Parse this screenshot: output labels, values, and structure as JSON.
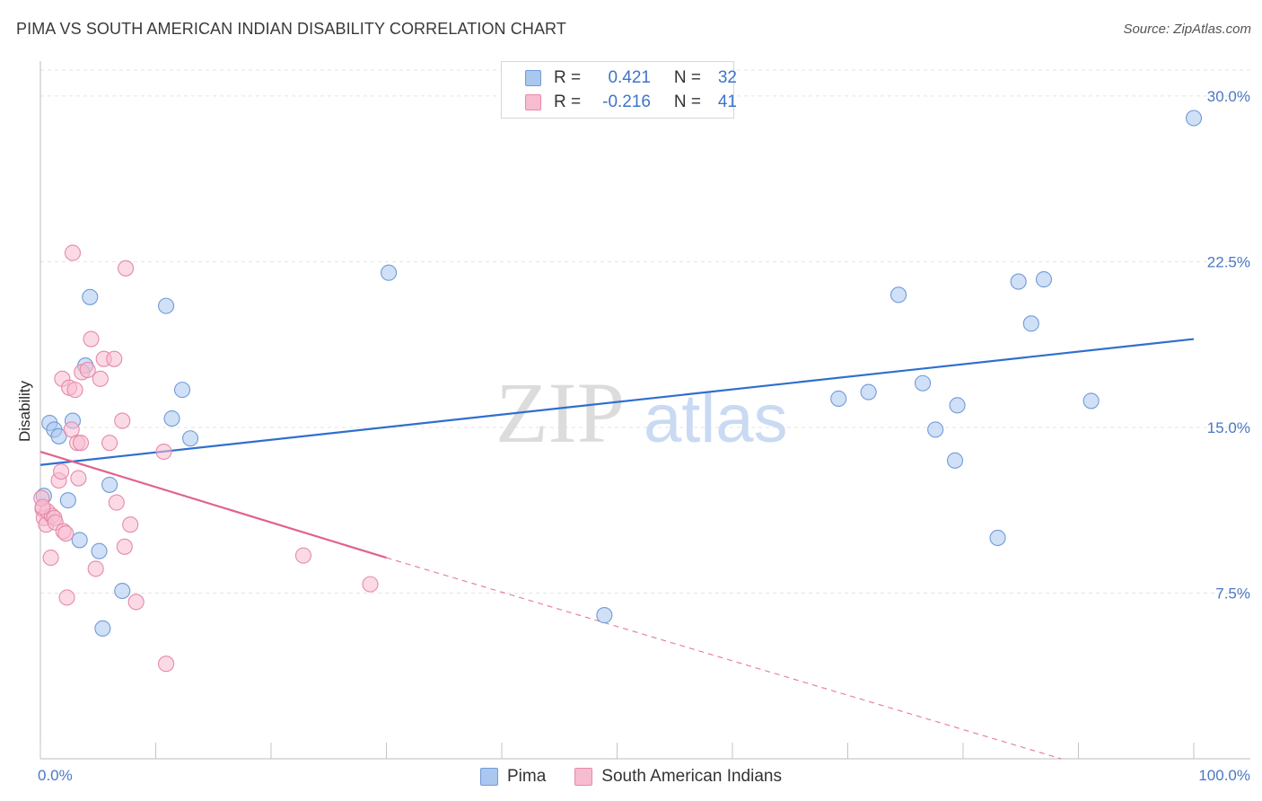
{
  "title": "PIMA VS SOUTH AMERICAN INDIAN DISABILITY CORRELATION CHART",
  "source": "Source: ZipAtlas.com",
  "watermark": {
    "zip": "ZIP",
    "atlas": "atlas"
  },
  "legend": {
    "rows": [
      {
        "r_label": "R =",
        "r_value": "0.421",
        "n_label": "N =",
        "n_value": "32",
        "color": "#a9c7ef",
        "stroke": "#6f9bd8"
      },
      {
        "r_label": "R =",
        "r_value": "-0.216",
        "n_label": "N =",
        "n_value": "41",
        "color": "#f7bcd0",
        "stroke": "#e58aa8"
      }
    ]
  },
  "bottom_legend": [
    {
      "label": "Pima",
      "color": "#a9c7ef",
      "stroke": "#6f9bd8"
    },
    {
      "label": "South American Indians",
      "color": "#f7bcd0",
      "stroke": "#e58aa8"
    }
  ],
  "chart_data": {
    "type": "scatter",
    "title": "PIMA VS SOUTH AMERICAN INDIAN DISABILITY CORRELATION CHART",
    "xlabel": "",
    "ylabel": "Disability",
    "xlim": [
      0,
      100
    ],
    "ylim": [
      0,
      31.5
    ],
    "x_tick_labels": [
      "0.0%",
      "100.0%"
    ],
    "y_ticks": [
      7.5,
      15.0,
      22.5,
      30.0
    ],
    "y_tick_labels": [
      "7.5%",
      "15.0%",
      "22.5%",
      "30.0%"
    ],
    "grid": true,
    "series": [
      {
        "name": "Pima",
        "color": "#a9c7ef",
        "stroke": "#6f9bd8",
        "line_color": "#2f6fce",
        "trend": {
          "x0": 0,
          "y0": 13.3,
          "x1": 100,
          "y1": 19.0
        },
        "points": [
          {
            "x": 0.3,
            "y": 11.9
          },
          {
            "x": 0.8,
            "y": 15.2
          },
          {
            "x": 1.2,
            "y": 14.9
          },
          {
            "x": 1.6,
            "y": 14.6
          },
          {
            "x": 2.4,
            "y": 11.7
          },
          {
            "x": 2.8,
            "y": 15.3
          },
          {
            "x": 3.4,
            "y": 9.9
          },
          {
            "x": 3.9,
            "y": 17.8
          },
          {
            "x": 4.3,
            "y": 20.9
          },
          {
            "x": 5.1,
            "y": 9.4
          },
          {
            "x": 5.4,
            "y": 5.9
          },
          {
            "x": 6.0,
            "y": 12.4
          },
          {
            "x": 7.1,
            "y": 7.6
          },
          {
            "x": 10.9,
            "y": 20.5
          },
          {
            "x": 11.4,
            "y": 15.4
          },
          {
            "x": 12.3,
            "y": 16.7
          },
          {
            "x": 13.0,
            "y": 14.5
          },
          {
            "x": 30.2,
            "y": 22.0
          },
          {
            "x": 48.9,
            "y": 6.5
          },
          {
            "x": 69.2,
            "y": 16.3
          },
          {
            "x": 71.8,
            "y": 16.6
          },
          {
            "x": 74.4,
            "y": 21.0
          },
          {
            "x": 76.5,
            "y": 17.0
          },
          {
            "x": 77.6,
            "y": 14.9
          },
          {
            "x": 79.3,
            "y": 13.5
          },
          {
            "x": 79.5,
            "y": 16.0
          },
          {
            "x": 83.0,
            "y": 10.0
          },
          {
            "x": 84.8,
            "y": 21.6
          },
          {
            "x": 85.9,
            "y": 19.7
          },
          {
            "x": 87.0,
            "y": 21.7
          },
          {
            "x": 91.1,
            "y": 16.2
          },
          {
            "x": 100.0,
            "y": 29.0
          }
        ]
      },
      {
        "name": "South American Indians",
        "color": "#f7bcd0",
        "stroke": "#e58aa8",
        "line_color": "#e0638d",
        "trend": {
          "x0": 0,
          "y0": 13.9,
          "x1": 30,
          "y1": 9.1
        },
        "trend_dashed": {
          "x0": 30,
          "y0": 9.1,
          "x1": 88.5,
          "y1": 0.0
        },
        "points": [
          {
            "x": 0.2,
            "y": 11.3
          },
          {
            "x": 0.3,
            "y": 10.9
          },
          {
            "x": 0.5,
            "y": 10.6
          },
          {
            "x": 0.6,
            "y": 11.2
          },
          {
            "x": 0.9,
            "y": 9.1
          },
          {
            "x": 1.0,
            "y": 11.0
          },
          {
            "x": 1.2,
            "y": 10.9
          },
          {
            "x": 1.3,
            "y": 10.7
          },
          {
            "x": 1.6,
            "y": 12.6
          },
          {
            "x": 1.8,
            "y": 13.0
          },
          {
            "x": 1.9,
            "y": 17.2
          },
          {
            "x": 2.0,
            "y": 10.3
          },
          {
            "x": 2.2,
            "y": 10.2
          },
          {
            "x": 2.3,
            "y": 7.3
          },
          {
            "x": 2.5,
            "y": 16.8
          },
          {
            "x": 2.7,
            "y": 14.9
          },
          {
            "x": 2.8,
            "y": 22.9
          },
          {
            "x": 3.0,
            "y": 16.7
          },
          {
            "x": 3.2,
            "y": 14.3
          },
          {
            "x": 3.3,
            "y": 12.7
          },
          {
            "x": 3.5,
            "y": 14.3
          },
          {
            "x": 3.6,
            "y": 17.5
          },
          {
            "x": 4.1,
            "y": 17.6
          },
          {
            "x": 4.4,
            "y": 19.0
          },
          {
            "x": 4.8,
            "y": 8.6
          },
          {
            "x": 5.2,
            "y": 17.2
          },
          {
            "x": 5.5,
            "y": 18.1
          },
          {
            "x": 6.0,
            "y": 14.3
          },
          {
            "x": 6.4,
            "y": 18.1
          },
          {
            "x": 6.6,
            "y": 11.6
          },
          {
            "x": 7.1,
            "y": 15.3
          },
          {
            "x": 7.3,
            "y": 9.6
          },
          {
            "x": 7.4,
            "y": 22.2
          },
          {
            "x": 7.8,
            "y": 10.6
          },
          {
            "x": 8.3,
            "y": 7.1
          },
          {
            "x": 10.7,
            "y": 13.9
          },
          {
            "x": 10.9,
            "y": 4.3
          },
          {
            "x": 22.8,
            "y": 9.2
          },
          {
            "x": 28.6,
            "y": 7.9
          },
          {
            "x": 0.1,
            "y": 11.8
          },
          {
            "x": 0.2,
            "y": 11.4
          }
        ]
      }
    ]
  }
}
